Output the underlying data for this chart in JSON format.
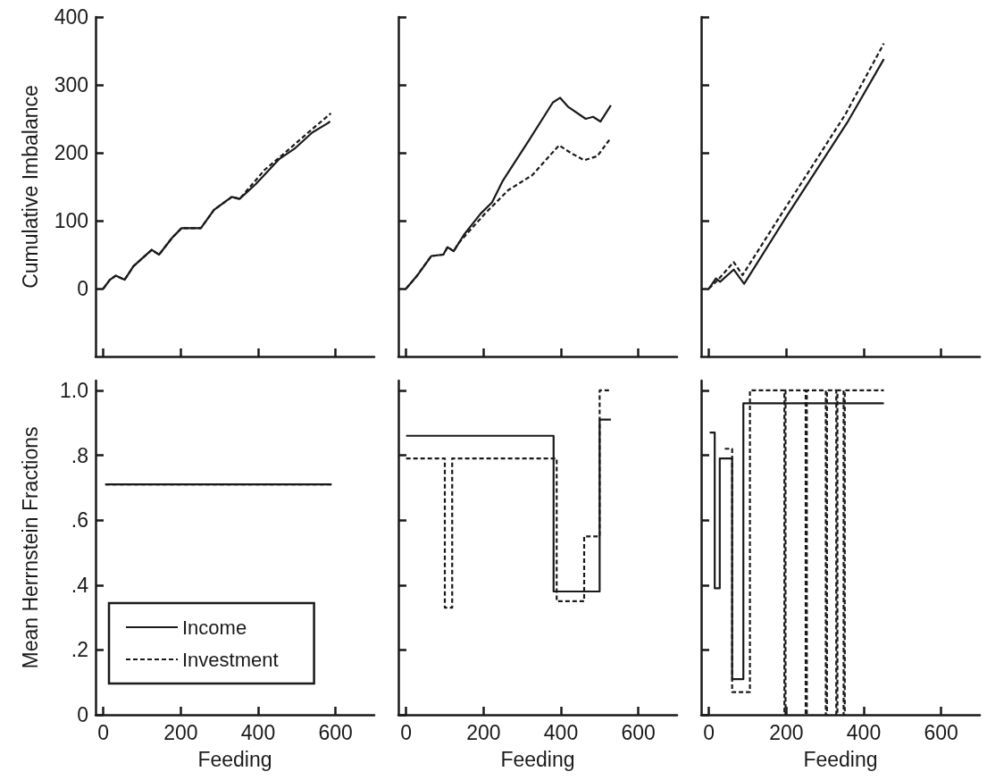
{
  "chart_data": [
    {
      "type": "line",
      "ylabel": "Cumulative Imbalance",
      "xlim": [
        -20,
        700
      ],
      "xticks": [
        0,
        200,
        400,
        600
      ],
      "ylim": [
        -100,
        400
      ],
      "yticks": [
        0,
        100,
        200,
        300,
        400
      ],
      "tick_labels": "y",
      "grid": false,
      "legend": false,
      "marker": "none",
      "series": [
        {
          "color": "#1a1a1a",
          "line_style": "solid",
          "x": [
            0,
            17,
            32,
            55,
            78,
            125,
            144,
            178,
            202,
            252,
            286,
            332,
            352,
            394,
            455,
            494,
            540,
            578,
            586
          ],
          "values": [
            0,
            13,
            19,
            13,
            33,
            57,
            50,
            75,
            89,
            89,
            116,
            135,
            132,
            154,
            191,
            206,
            230,
            243,
            246
          ]
        },
        {
          "color": "#1a1a1a",
          "line_style": "dashed",
          "x": [
            0,
            17,
            32,
            55,
            78,
            125,
            144,
            178,
            202,
            252,
            286,
            332,
            352,
            417,
            463,
            540,
            588
          ],
          "values": [
            0,
            13,
            19,
            13,
            33,
            57,
            50,
            75,
            89,
            89,
            116,
            135,
            132,
            175,
            197,
            235,
            258
          ]
        }
      ]
    },
    {
      "type": "line",
      "xlim": [
        -20,
        700
      ],
      "xticks": [
        0,
        200,
        400,
        600
      ],
      "ylim": [
        -100,
        400
      ],
      "yticks": [
        0,
        100,
        200,
        300,
        400
      ],
      "tick_labels": false,
      "grid": false,
      "legend": false,
      "marker": "none",
      "series": [
        {
          "color": "#1a1a1a",
          "line_style": "solid",
          "x": [
            0,
            27,
            65,
            96,
            107,
            123,
            149,
            192,
            222,
            249,
            318,
            379,
            398,
            418,
            464,
            483,
            502,
            529
          ],
          "values": [
            0,
            18,
            48,
            50,
            61,
            55,
            79,
            110,
            127,
            158,
            219,
            274,
            281,
            268,
            250,
            253,
            246,
            270
          ]
        },
        {
          "color": "#1a1a1a",
          "line_style": "dashed",
          "x": [
            0,
            27,
            65,
            96,
            107,
            123,
            134,
            203,
            264,
            326,
            395,
            425,
            460,
            494,
            525
          ],
          "values": [
            0,
            18,
            48,
            50,
            61,
            55,
            66,
            110,
            145,
            167,
            211,
            200,
            189,
            195,
            219
          ]
        }
      ]
    },
    {
      "type": "line",
      "xlim": [
        -20,
        700
      ],
      "xticks": [
        0,
        200,
        400,
        600
      ],
      "ylim": [
        -100,
        400
      ],
      "yticks": [
        0,
        100,
        200,
        300,
        400
      ],
      "tick_labels": false,
      "grid": false,
      "legend": false,
      "marker": "none",
      "series": [
        {
          "color": "#1a1a1a",
          "line_style": "solid",
          "x": [
            0,
            18,
            29,
            64,
            91,
            198,
            360,
            452
          ],
          "values": [
            0,
            15,
            10,
            28,
            7,
            104,
            247,
            338
          ]
        },
        {
          "color": "#1a1a1a",
          "line_style": "dashed",
          "x": [
            0,
            22,
            64,
            87,
            191,
            352,
            452
          ],
          "values": [
            0,
            12,
            39,
            20,
            113,
            256,
            361
          ]
        }
      ]
    },
    {
      "type": "step",
      "ylabel": "Mean Herrnstein Fractions",
      "xlabel": "Feeding",
      "xlim": [
        -20,
        700
      ],
      "xticks": [
        0,
        200,
        400,
        600
      ],
      "ylim": [
        0,
        1.03
      ],
      "yticks": [
        0,
        {
          "value": 0.2,
          "label": ".2"
        },
        {
          "value": 0.4,
          "label": ".4"
        },
        {
          "value": 0.6,
          "label": ".6"
        },
        {
          "value": 0.8,
          "label": ".8"
        },
        {
          "value": 1,
          "label": "1.0"
        }
      ],
      "grid": false,
      "legend": "bottom left",
      "marker": "none",
      "series": [
        {
          "name": "Income",
          "color": "#1a1a1a",
          "line_style": "solid",
          "x": [
            5,
            590
          ],
          "values": [
            0.71,
            0.71
          ]
        },
        {
          "name": "Investment",
          "color": "#1a1a1a",
          "line_style": "dashed",
          "x": [
            5,
            590
          ],
          "values": [
            0.71,
            0.71
          ]
        }
      ]
    },
    {
      "type": "step",
      "xlabel": "Feeding",
      "xlim": [
        -20,
        700
      ],
      "xticks": [
        0,
        200,
        400,
        600
      ],
      "ylim": [
        0,
        1.03
      ],
      "yticks": [
        0,
        0.2,
        0.4,
        0.6,
        0.8,
        1
      ],
      "tick_labels": "x",
      "grid": false,
      "legend": false,
      "marker": "none",
      "series": [
        {
          "color": "#1a1a1a",
          "line_style": "solid",
          "x": [
            0,
            381,
            500,
            529
          ],
          "values": [
            0.86,
            0.38,
            0.91,
            0.91
          ]
        },
        {
          "color": "#1a1a1a",
          "line_style": "dashed",
          "x": [
            0,
            100,
            119,
            389,
            460,
            500,
            529
          ],
          "values": [
            0.79,
            0.33,
            0.79,
            0.35,
            0.55,
            1.0,
            1.0
          ]
        }
      ]
    },
    {
      "type": "step",
      "xlabel": "Feeding",
      "xlim": [
        -20,
        700
      ],
      "xticks": [
        0,
        200,
        400,
        600
      ],
      "ylim": [
        0,
        1.03
      ],
      "yticks": [
        0,
        0.2,
        0.4,
        0.6,
        0.8,
        1
      ],
      "tick_labels": "x",
      "grid": false,
      "legend": false,
      "marker": "none",
      "series": [
        {
          "color": "#1a1a1a",
          "line_style": "solid",
          "x": [
            2,
            15,
            28,
            60,
            89,
            452
          ],
          "values": [
            0.87,
            0.39,
            0.79,
            0.11,
            0.96,
            0.96
          ]
        },
        {
          "color": "#1a1a1a",
          "line_style": "dashed",
          "x": [
            41,
            60,
            106,
            195,
            198,
            250,
            253,
            302,
            305,
            329,
            332,
            348,
            351,
            452
          ],
          "values": [
            0.82,
            0.07,
            1.0,
            0,
            1.0,
            0,
            1.0,
            0,
            1.0,
            0,
            1.0,
            0,
            1.0,
            1.0
          ]
        }
      ]
    }
  ]
}
